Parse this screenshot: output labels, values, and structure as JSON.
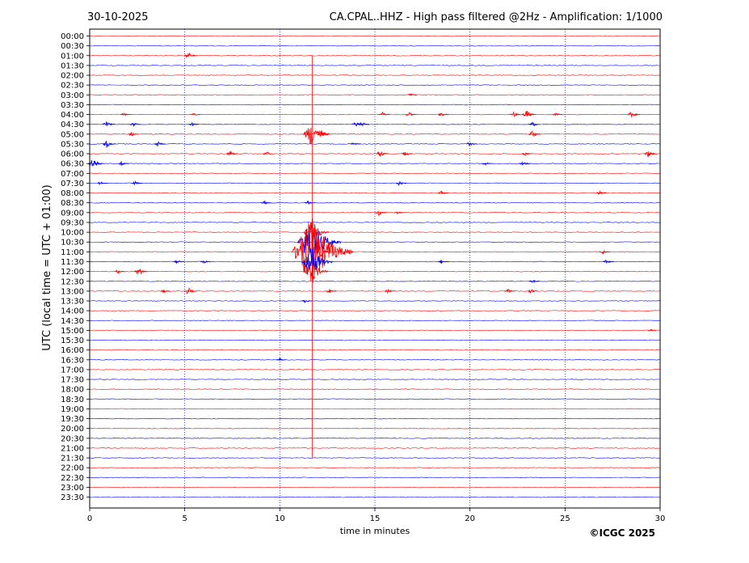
{
  "header": {
    "date": "30-10-2025",
    "station_title": "CA.CPAL..HHZ - High pass filtered @2Hz - Amplification: 1/1000"
  },
  "footer": {
    "copyright": "©ICGC 2025"
  },
  "chart_data": {
    "type": "line",
    "title": "CA.CPAL..HHZ - High pass filtered @2Hz - Amplification: 1/1000",
    "xlabel": "time in minutes",
    "ylabel": "UTC (local time = UTC + 01:00)",
    "xlim": [
      0,
      30
    ],
    "x_ticks": [
      "0",
      "5",
      "10",
      "15",
      "20",
      "25",
      "30"
    ],
    "rows": [
      "00:00",
      "00:30",
      "01:00",
      "01:30",
      "02:00",
      "02:30",
      "03:00",
      "03:30",
      "04:00",
      "04:30",
      "05:00",
      "05:30",
      "06:00",
      "06:30",
      "07:00",
      "07:30",
      "08:00",
      "08:30",
      "09:00",
      "09:30",
      "10:00",
      "10:30",
      "11:00",
      "11:30",
      "12:00",
      "12:30",
      "13:00",
      "13:30",
      "14:00",
      "14:30",
      "15:00",
      "15:30",
      "16:00",
      "16:30",
      "17:00",
      "17:30",
      "18:00",
      "18:30",
      "19:00",
      "19:30",
      "20:00",
      "20:30",
      "21:00",
      "21:30",
      "22:00",
      "22:30",
      "23:00",
      "23:30"
    ],
    "row_colors": [
      "#ff0000",
      "#0000ff"
    ],
    "grid": "vertical dotted lines at 5-minute intervals",
    "events": [
      {
        "row": "01:00",
        "minute": 5.2,
        "amplitude": 0.45
      },
      {
        "row": "03:00",
        "minute": 16.9,
        "amplitude": 0.2
      },
      {
        "row": "04:00",
        "minute": 1.8,
        "amplitude": 0.25
      },
      {
        "row": "04:00",
        "minute": 5.5,
        "amplitude": 0.2
      },
      {
        "row": "04:00",
        "minute": 15.4,
        "amplitude": 0.3
      },
      {
        "row": "04:00",
        "minute": 16.8,
        "amplitude": 0.35
      },
      {
        "row": "04:00",
        "minute": 18.5,
        "amplitude": 0.3
      },
      {
        "row": "04:00",
        "minute": 22.3,
        "amplitude": 0.35
      },
      {
        "row": "04:00",
        "minute": 23.0,
        "amplitude": 0.55
      },
      {
        "row": "04:00",
        "minute": 24.5,
        "amplitude": 0.25
      },
      {
        "row": "04:00",
        "minute": 28.5,
        "amplitude": 0.45
      },
      {
        "row": "04:30",
        "minute": 0.9,
        "amplitude": 0.45
      },
      {
        "row": "04:30",
        "minute": 2.3,
        "amplitude": 0.3
      },
      {
        "row": "04:30",
        "minute": 5.4,
        "amplitude": 0.25
      },
      {
        "row": "04:30",
        "minute": 14.0,
        "amplitude": 0.35
      },
      {
        "row": "04:30",
        "minute": 14.3,
        "amplitude": 0.4
      },
      {
        "row": "04:30",
        "minute": 23.3,
        "amplitude": 0.4
      },
      {
        "row": "05:00",
        "minute": 2.2,
        "amplitude": 0.3
      },
      {
        "row": "05:00",
        "minute": 11.7,
        "amplitude": 1.6
      },
      {
        "row": "05:00",
        "minute": 12.2,
        "amplitude": 0.5
      },
      {
        "row": "05:00",
        "minute": 23.3,
        "amplitude": 0.45
      },
      {
        "row": "05:30",
        "minute": 0.9,
        "amplitude": 0.5
      },
      {
        "row": "05:30",
        "minute": 3.6,
        "amplitude": 0.35
      },
      {
        "row": "05:30",
        "minute": 13.9,
        "amplitude": 0.3
      },
      {
        "row": "05:30",
        "minute": 20.0,
        "amplitude": 0.3
      },
      {
        "row": "06:00",
        "minute": 7.4,
        "amplitude": 0.4
      },
      {
        "row": "06:00",
        "minute": 9.3,
        "amplitude": 0.3
      },
      {
        "row": "06:00",
        "minute": 15.3,
        "amplitude": 0.45
      },
      {
        "row": "06:00",
        "minute": 16.6,
        "amplitude": 0.35
      },
      {
        "row": "06:00",
        "minute": 22.9,
        "amplitude": 0.25
      },
      {
        "row": "06:00",
        "minute": 29.4,
        "amplitude": 0.5
      },
      {
        "row": "06:30",
        "minute": 0.2,
        "amplitude": 0.7
      },
      {
        "row": "06:30",
        "minute": 1.7,
        "amplitude": 0.3
      },
      {
        "row": "06:30",
        "minute": 20.8,
        "amplitude": 0.25
      },
      {
        "row": "06:30",
        "minute": 22.8,
        "amplitude": 0.4
      },
      {
        "row": "07:30",
        "minute": 0.6,
        "amplitude": 0.3
      },
      {
        "row": "07:30",
        "minute": 2.4,
        "amplitude": 0.25
      },
      {
        "row": "07:30",
        "minute": 16.3,
        "amplitude": 0.3
      },
      {
        "row": "08:00",
        "minute": 18.5,
        "amplitude": 0.25
      },
      {
        "row": "08:00",
        "minute": 26.8,
        "amplitude": 0.3
      },
      {
        "row": "08:30",
        "minute": 9.2,
        "amplitude": 0.3
      },
      {
        "row": "08:30",
        "minute": 11.5,
        "amplitude": 0.25
      },
      {
        "row": "09:00",
        "minute": 15.2,
        "amplitude": 0.35
      },
      {
        "row": "09:00",
        "minute": 16.2,
        "amplitude": 0.2
      },
      {
        "row": "10:00",
        "minute": 11.7,
        "amplitude": 1.5
      },
      {
        "row": "10:30",
        "minute": 11.7,
        "amplitude": 3.0
      },
      {
        "row": "11:00",
        "minute": 11.7,
        "amplitude": 4.5
      },
      {
        "row": "11:00",
        "minute": 12.2,
        "amplitude": 0.6
      },
      {
        "row": "11:00",
        "minute": 27.0,
        "amplitude": 0.3
      },
      {
        "row": "11:30",
        "minute": 4.6,
        "amplitude": 0.25
      },
      {
        "row": "11:30",
        "minute": 6.0,
        "amplitude": 0.25
      },
      {
        "row": "11:30",
        "minute": 11.7,
        "amplitude": 2.0
      },
      {
        "row": "11:30",
        "minute": 18.5,
        "amplitude": 0.25
      },
      {
        "row": "11:30",
        "minute": 27.2,
        "amplitude": 0.3
      },
      {
        "row": "12:00",
        "minute": 1.5,
        "amplitude": 0.25
      },
      {
        "row": "12:00",
        "minute": 2.6,
        "amplitude": 0.55
      },
      {
        "row": "12:00",
        "minute": 11.7,
        "amplitude": 1.4
      },
      {
        "row": "12:30",
        "minute": 23.3,
        "amplitude": 0.25
      },
      {
        "row": "13:00",
        "minute": 3.9,
        "amplitude": 0.25
      },
      {
        "row": "13:00",
        "minute": 5.2,
        "amplitude": 0.45
      },
      {
        "row": "13:00",
        "minute": 12.6,
        "amplitude": 0.3
      },
      {
        "row": "13:00",
        "minute": 15.7,
        "amplitude": 0.25
      },
      {
        "row": "13:00",
        "minute": 22.0,
        "amplitude": 0.3
      },
      {
        "row": "13:00",
        "minute": 23.2,
        "amplitude": 0.3
      },
      {
        "row": "13:30",
        "minute": 11.3,
        "amplitude": 0.3
      },
      {
        "row": "15:00",
        "minute": 29.5,
        "amplitude": 0.15
      },
      {
        "row": "16:30",
        "minute": 10.0,
        "amplitude": 0.2
      }
    ],
    "long_trace": {
      "minute": 11.7,
      "from_row": "01:00",
      "to_row": "21:30"
    }
  }
}
